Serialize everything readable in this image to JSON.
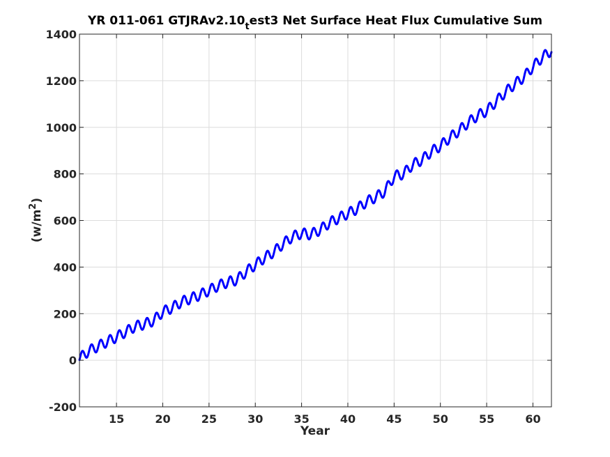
{
  "chart_data": {
    "type": "line",
    "title": {
      "prefix": "YR 011-061 GTJRAv2.10",
      "subscript": "t",
      "suffix": "est3 Net Surface Heat Flux  Cumulative Sum"
    },
    "xlabel": "Year",
    "ylabel": {
      "prefix": "(w/m",
      "superscript": "2",
      "suffix": ")"
    },
    "xlim": [
      11,
      62
    ],
    "ylim": [
      -200,
      1400
    ],
    "xticks": [
      15,
      20,
      25,
      30,
      35,
      40,
      45,
      50,
      55,
      60
    ],
    "yticks": [
      -200,
      0,
      200,
      400,
      600,
      800,
      1000,
      1200,
      1400
    ],
    "grid": true,
    "seasonal_cycle": {
      "period_years": 1,
      "amplitude": 22,
      "phase_peak_fraction": 0.3
    },
    "series": [
      {
        "color": "#0000ff",
        "trend_x": [
          11,
          12,
          13,
          14,
          15,
          16,
          17,
          18,
          19,
          20,
          21,
          22,
          23,
          24,
          25,
          26,
          27,
          28,
          29,
          30,
          31,
          32,
          33,
          34,
          35,
          36,
          37,
          38,
          39,
          40,
          41,
          42,
          43,
          44,
          45,
          46,
          47,
          48,
          49,
          50,
          51,
          52,
          53,
          54,
          55,
          56,
          57,
          58,
          59,
          60,
          61,
          62
        ],
        "trend_y": [
          8,
          40,
          60,
          80,
          100,
          122,
          145,
          155,
          170,
          208,
          225,
          250,
          265,
          280,
          300,
          320,
          335,
          345,
          380,
          410,
          440,
          465,
          500,
          530,
          545,
          540,
          560,
          590,
          610,
          630,
          650,
          680,
          700,
          725,
          790,
          800,
          840,
          860,
          895,
          920,
          955,
          985,
          1020,
          1050,
          1070,
          1110,
          1150,
          1185,
          1215,
          1260,
          1300,
          1330
        ]
      }
    ]
  }
}
